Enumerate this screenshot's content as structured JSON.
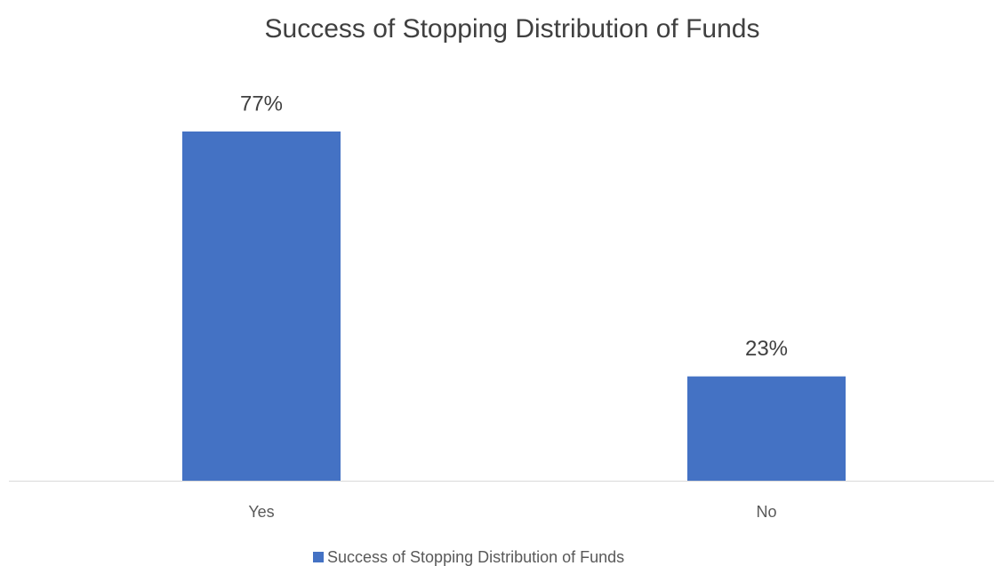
{
  "chart_data": {
    "type": "bar",
    "title": "Success of Stopping Distribution of Funds",
    "categories": [
      "Yes",
      "No"
    ],
    "series": [
      {
        "name": "Success of Stopping Distribution of Funds",
        "color": "#4472c4",
        "values": [
          77,
          23
        ],
        "value_labels": [
          "77%",
          "23%"
        ]
      }
    ],
    "legend": "bottom"
  }
}
